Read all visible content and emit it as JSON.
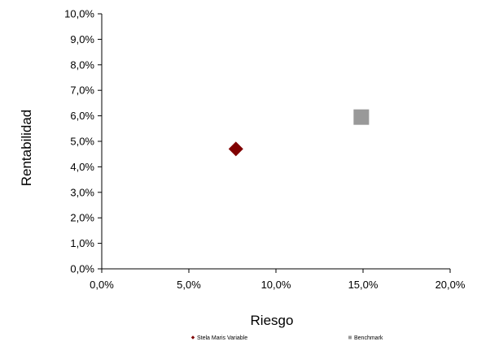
{
  "chart_data": {
    "type": "scatter",
    "title": "",
    "xlabel": "Riesgo",
    "ylabel": "Rentabilidad",
    "xlim": [
      0,
      20
    ],
    "ylim": [
      0,
      10
    ],
    "x_ticks": [
      0,
      5,
      10,
      15,
      20
    ],
    "y_ticks": [
      0,
      1,
      2,
      3,
      4,
      5,
      6,
      7,
      8,
      9,
      10
    ],
    "x_tick_labels": [
      "0,0%",
      "5,0%",
      "10,0%",
      "15,0%",
      "20,0%"
    ],
    "y_tick_labels": [
      "0,0%",
      "1,0%",
      "2,0%",
      "3,0%",
      "4,0%",
      "5,0%",
      "6,0%",
      "7,0%",
      "8,0%",
      "9,0%",
      "10,0%"
    ],
    "grid": false,
    "legend_position": "bottom",
    "series": [
      {
        "name": "Stela Maris Variable",
        "marker": "diamond",
        "color": "#800000",
        "x": [
          7.7
        ],
        "y": [
          4.7
        ]
      },
      {
        "name": "Benchmark",
        "marker": "square",
        "color": "#999999",
        "x": [
          14.9
        ],
        "y": [
          5.95
        ]
      }
    ]
  }
}
